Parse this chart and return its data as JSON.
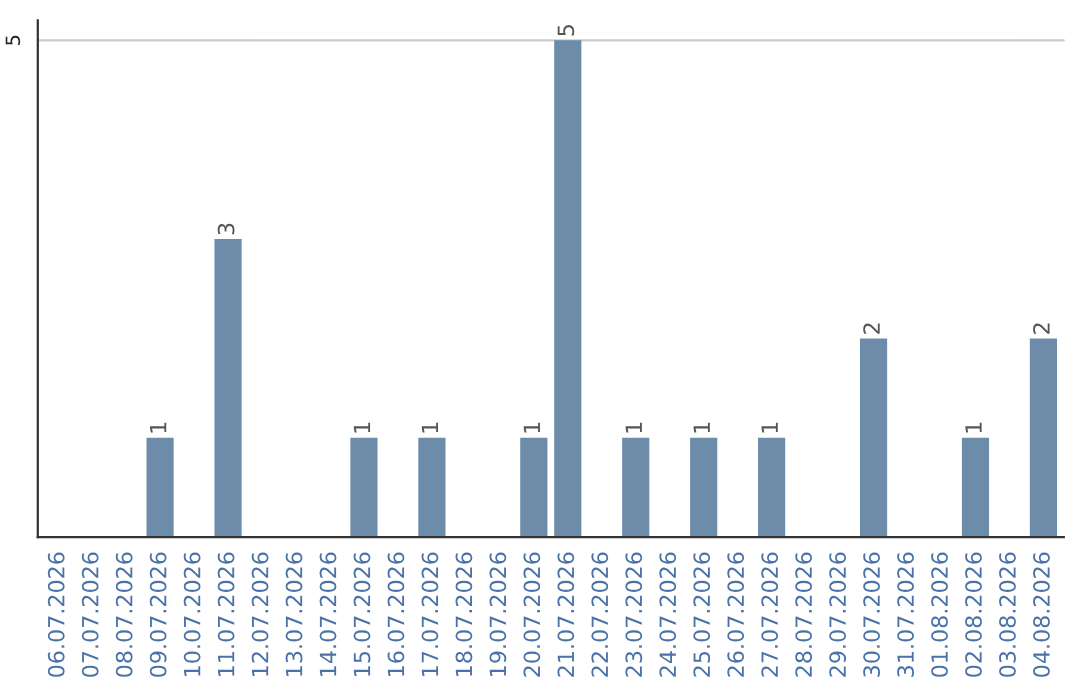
{
  "chart_data": {
    "type": "bar",
    "categories": [
      "06.07.2026",
      "07.07.2026",
      "08.07.2026",
      "09.07.2026",
      "10.07.2026",
      "11.07.2026",
      "12.07.2026",
      "13.07.2026",
      "14.07.2026",
      "15.07.2026",
      "16.07.2026",
      "17.07.2026",
      "18.07.2026",
      "19.07.2026",
      "20.07.2026",
      "21.07.2026",
      "22.07.2026",
      "23.07.2026",
      "24.07.2026",
      "25.07.2026",
      "26.07.2026",
      "27.07.2026",
      "28.07.2026",
      "29.07.2026",
      "30.07.2026",
      "31.07.2026",
      "01.08.2026",
      "02.08.2026",
      "03.08.2026",
      "04.08.2026"
    ],
    "values": [
      0,
      0,
      0,
      1,
      0,
      3,
      0,
      0,
      0,
      1,
      0,
      1,
      0,
      0,
      1,
      5,
      0,
      1,
      0,
      1,
      0,
      1,
      0,
      0,
      2,
      0,
      0,
      1,
      0,
      2
    ],
    "value_labels": [
      null,
      null,
      null,
      "1",
      null,
      "3",
      null,
      null,
      null,
      "1",
      null,
      "1",
      null,
      null,
      "1",
      "5",
      null,
      "1",
      null,
      "1",
      null,
      "1",
      null,
      null,
      "2",
      null,
      null,
      "1",
      null,
      "2"
    ],
    "color": "#6d8caa",
    "ylim": [
      0,
      5.2
    ],
    "yticks": [
      5
    ],
    "grid": "y",
    "legend": false
  }
}
